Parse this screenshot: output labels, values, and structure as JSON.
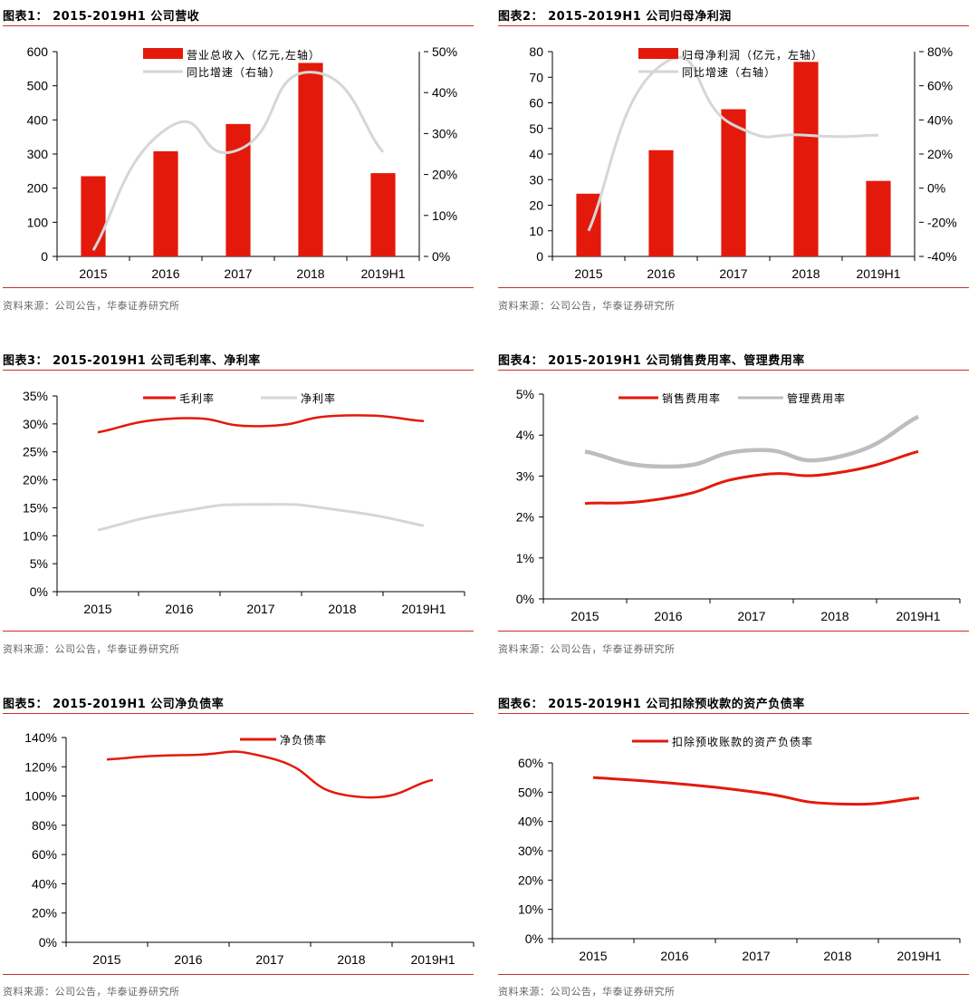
{
  "source_label": "资料来源：公司公告，华泰证券研究所",
  "colors": {
    "red": "#e31a0b",
    "gray": "#d6d6d6",
    "darkgray": "#bdbdbd",
    "rule": "#c8302b"
  },
  "chart_data": [
    {
      "id": "c1",
      "type": "bar+line",
      "title": "图表1：  2015-2019H1 公司营收",
      "categories": [
        "2015",
        "2016",
        "2017",
        "2018",
        "2019H1"
      ],
      "bar_series": {
        "name": "营业总收入（亿元,左轴）",
        "values": [
          235,
          308,
          388,
          567,
          244
        ]
      },
      "line_series": {
        "name": "同比增速（右轴）",
        "values": [
          1.5,
          31,
          26,
          45,
          25.5
        ]
      },
      "y_left": {
        "min": 0,
        "max": 600,
        "ticks": [
          "0",
          "100",
          "200",
          "300",
          "400",
          "500",
          "600"
        ]
      },
      "y_right": {
        "min": 0,
        "max": 50,
        "ticks": [
          "0%",
          "10%",
          "20%",
          "30%",
          "40%",
          "50%"
        ]
      },
      "legend": "top-center"
    },
    {
      "id": "c2",
      "type": "bar+line",
      "title": "图表2：  2015-2019H1 公司归母净利润",
      "categories": [
        "2015",
        "2016",
        "2017",
        "2018",
        "2019H1"
      ],
      "bar_series": {
        "name": "归母净利润（亿元，左轴）",
        "values": [
          24.5,
          41.5,
          57.5,
          76,
          29.5
        ]
      },
      "line_series": {
        "name": "同比增速（右轴）",
        "values": [
          -25,
          72,
          37,
          31,
          31
        ]
      },
      "y_left": {
        "min": 0,
        "max": 80,
        "ticks": [
          "0",
          "10",
          "20",
          "30",
          "40",
          "50",
          "60",
          "70",
          "80"
        ]
      },
      "y_right": {
        "min": -40,
        "max": 80,
        "ticks": [
          "-40%",
          "-20%",
          "0%",
          "20%",
          "40%",
          "60%",
          "80%"
        ]
      },
      "legend": "top-center"
    },
    {
      "id": "c3",
      "type": "line",
      "title": "图表3：  2015-2019H1 公司毛利率、净利率",
      "categories": [
        "2015",
        "2016",
        "2017",
        "2018",
        "2019H1"
      ],
      "series": [
        {
          "name": "毛利率",
          "values": [
            28.5,
            31,
            29.6,
            31.5,
            30.5
          ]
        },
        {
          "name": "净利率",
          "values": [
            11,
            14.3,
            15.6,
            14.5,
            11.8
          ]
        }
      ],
      "y": {
        "min": 0,
        "max": 35,
        "ticks": [
          "0%",
          "5%",
          "10%",
          "15%",
          "20%",
          "25%",
          "30%",
          "35%"
        ]
      },
      "legend": "top-center"
    },
    {
      "id": "c4",
      "type": "line",
      "title": "图表4：  2015-2019H1 公司销售费用率、管理费用率",
      "categories": [
        "2015",
        "2016",
        "2017",
        "2018",
        "2019H1"
      ],
      "series": [
        {
          "name": "销售费用率",
          "values": [
            2.33,
            2.47,
            3.0,
            3.07,
            3.6
          ]
        },
        {
          "name": "管理费用率",
          "values": [
            3.6,
            3.23,
            3.63,
            3.45,
            4.45
          ]
        }
      ],
      "y": {
        "min": 0,
        "max": 5,
        "ticks": [
          "0%",
          "1%",
          "2%",
          "3%",
          "4%",
          "5%"
        ]
      },
      "legend": "top-center"
    },
    {
      "id": "c5",
      "type": "line",
      "title": "图表5：  2015-2019H1 公司净负债率",
      "categories": [
        "2015",
        "2016",
        "2017",
        "2018",
        "2019H1"
      ],
      "series": [
        {
          "name": "净负债率",
          "values": [
            125,
            128,
            126,
            100,
            111
          ]
        }
      ],
      "y": {
        "min": 0,
        "max": 140,
        "ticks": [
          "0%",
          "20%",
          "40%",
          "60%",
          "80%",
          "100%",
          "120%",
          "140%"
        ]
      },
      "legend": "top-center"
    },
    {
      "id": "c6",
      "type": "line",
      "title": "图表6：  2015-2019H1 公司扣除预收款的资产负债率",
      "categories": [
        "2015",
        "2016",
        "2017",
        "2018",
        "2019H1"
      ],
      "series": [
        {
          "name": "扣除预收账款的资产负债率",
          "values": [
            55,
            53,
            50,
            46,
            48
          ]
        }
      ],
      "y": {
        "min": 0,
        "max": 60,
        "ticks": [
          "0%",
          "10%",
          "20%",
          "30%",
          "40%",
          "50%",
          "60%"
        ]
      },
      "legend": "top-center"
    }
  ]
}
